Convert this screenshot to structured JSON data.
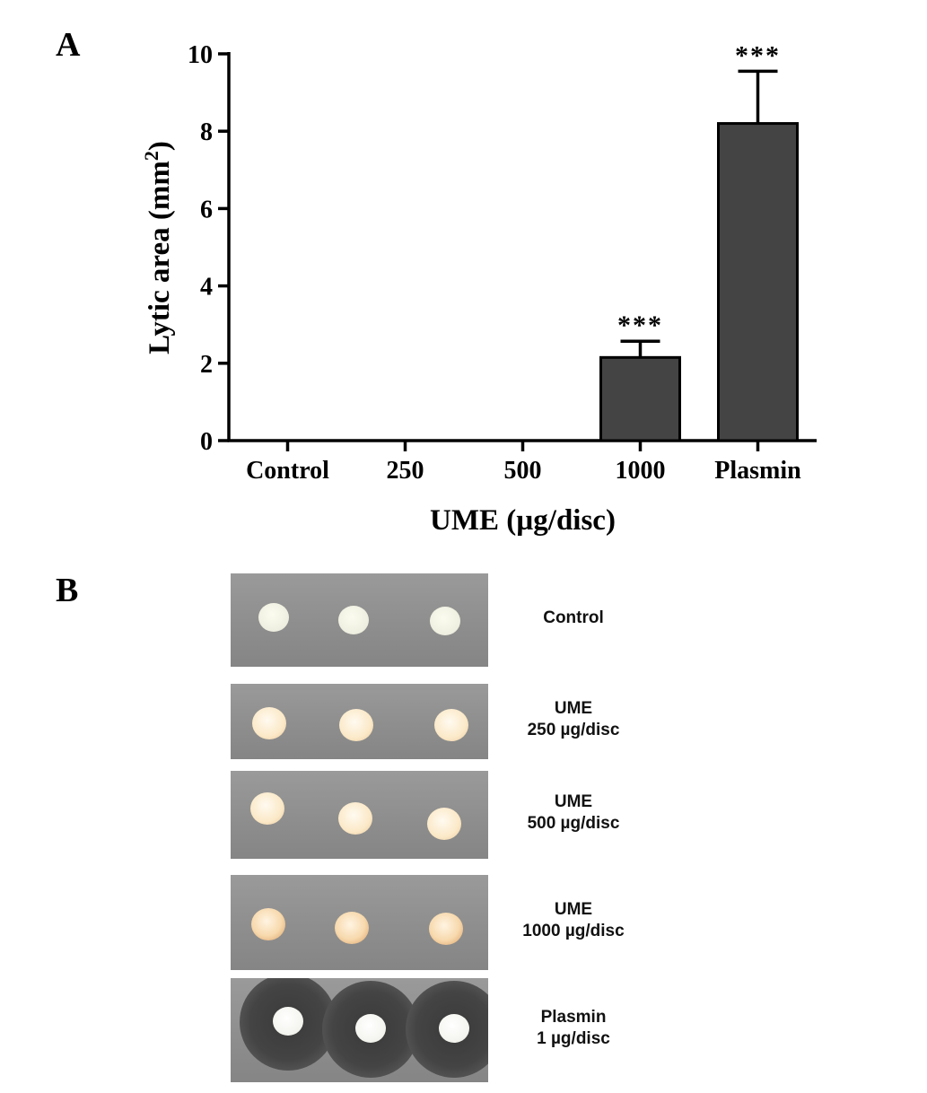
{
  "panel_a_letter": "A",
  "panel_b_letter": "B",
  "chart_data": {
    "type": "bar",
    "categories": [
      "Control",
      "250",
      "500",
      "1000",
      "Plasmin"
    ],
    "values": [
      0,
      0,
      0,
      2.15,
      8.2
    ],
    "errors": [
      0,
      0,
      0,
      0.42,
      1.35
    ],
    "significance": [
      "",
      "",
      "",
      "***",
      "***"
    ],
    "xlabel": "UME (µg/disc)",
    "ylabel": "Lytic area (mm",
    "ylabel_sup": "2",
    "ylabel_close": ")",
    "ylim": [
      0,
      10
    ],
    "yticks": [
      "0",
      "2",
      "4",
      "6",
      "8",
      "10"
    ],
    "bar_color": "#444444"
  },
  "plates": [
    {
      "label_lines": [
        "Control"
      ],
      "disc_style": "control"
    },
    {
      "label_lines": [
        "UME",
        "250 µg/disc"
      ],
      "disc_style": "ume"
    },
    {
      "label_lines": [
        "UME",
        "500 µg/disc"
      ],
      "disc_style": "ume"
    },
    {
      "label_lines": [
        "UME",
        "1000 µg/disc"
      ],
      "disc_style": "ume-dark"
    },
    {
      "label_lines": [
        "Plasmin",
        "1 µg/disc"
      ],
      "disc_style": "plasmin"
    }
  ]
}
